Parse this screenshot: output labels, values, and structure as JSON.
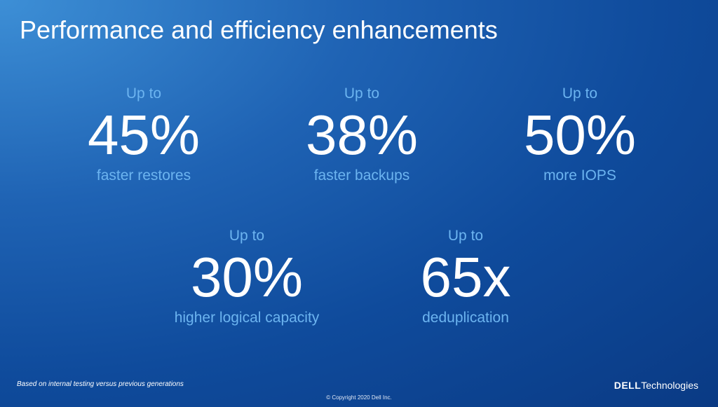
{
  "title": "Performance and efficiency enhancements",
  "stats": [
    {
      "prefix": "Up to",
      "value": "45%",
      "label": "faster restores"
    },
    {
      "prefix": "Up to",
      "value": "38%",
      "label": "faster backups"
    },
    {
      "prefix": "Up to",
      "value": "50%",
      "label": "more IOPS"
    },
    {
      "prefix": "Up to",
      "value": "30%",
      "label": "higher logical capacity"
    },
    {
      "prefix": "Up to",
      "value": "65x",
      "label": "deduplication"
    }
  ],
  "footnote": "Based on internal testing versus previous generations",
  "copyright": "© Copyright 2020 Dell Inc.",
  "logo": {
    "brand": "DELL",
    "suffix": "Technologies"
  }
}
